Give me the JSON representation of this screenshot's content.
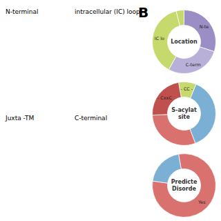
{
  "title": "B",
  "annotations": [
    "N-terminal",
    "intracellular (IC) loop",
    "Juxta -TM",
    "C-terminal"
  ],
  "chart_data": [
    {
      "type": "pie",
      "title": "Location",
      "categories": [
        "N-te",
        "C-term",
        "IC lo",
        null
      ],
      "values": [
        30,
        28,
        38,
        4
      ],
      "colors": [
        "#9b8ec4",
        "#b8b0d8",
        "#c5d96d",
        "#c5d96d"
      ]
    },
    {
      "type": "pie",
      "title": "S-acylat\nsite",
      "categories": [
        "- CC -",
        null,
        null,
        "- CxxC"
      ],
      "values": [
        9,
        38,
        30,
        23
      ],
      "colors": [
        "#c5d96d",
        "#7bafd4",
        "#d9726e",
        "#c0504d"
      ]
    },
    {
      "type": "pie",
      "title": "Predicte\nDisorde",
      "categories": [
        "Yes",
        null
      ],
      "values": [
        80,
        20
      ],
      "colors": [
        "#d9726e",
        "#7bafd4"
      ]
    }
  ]
}
